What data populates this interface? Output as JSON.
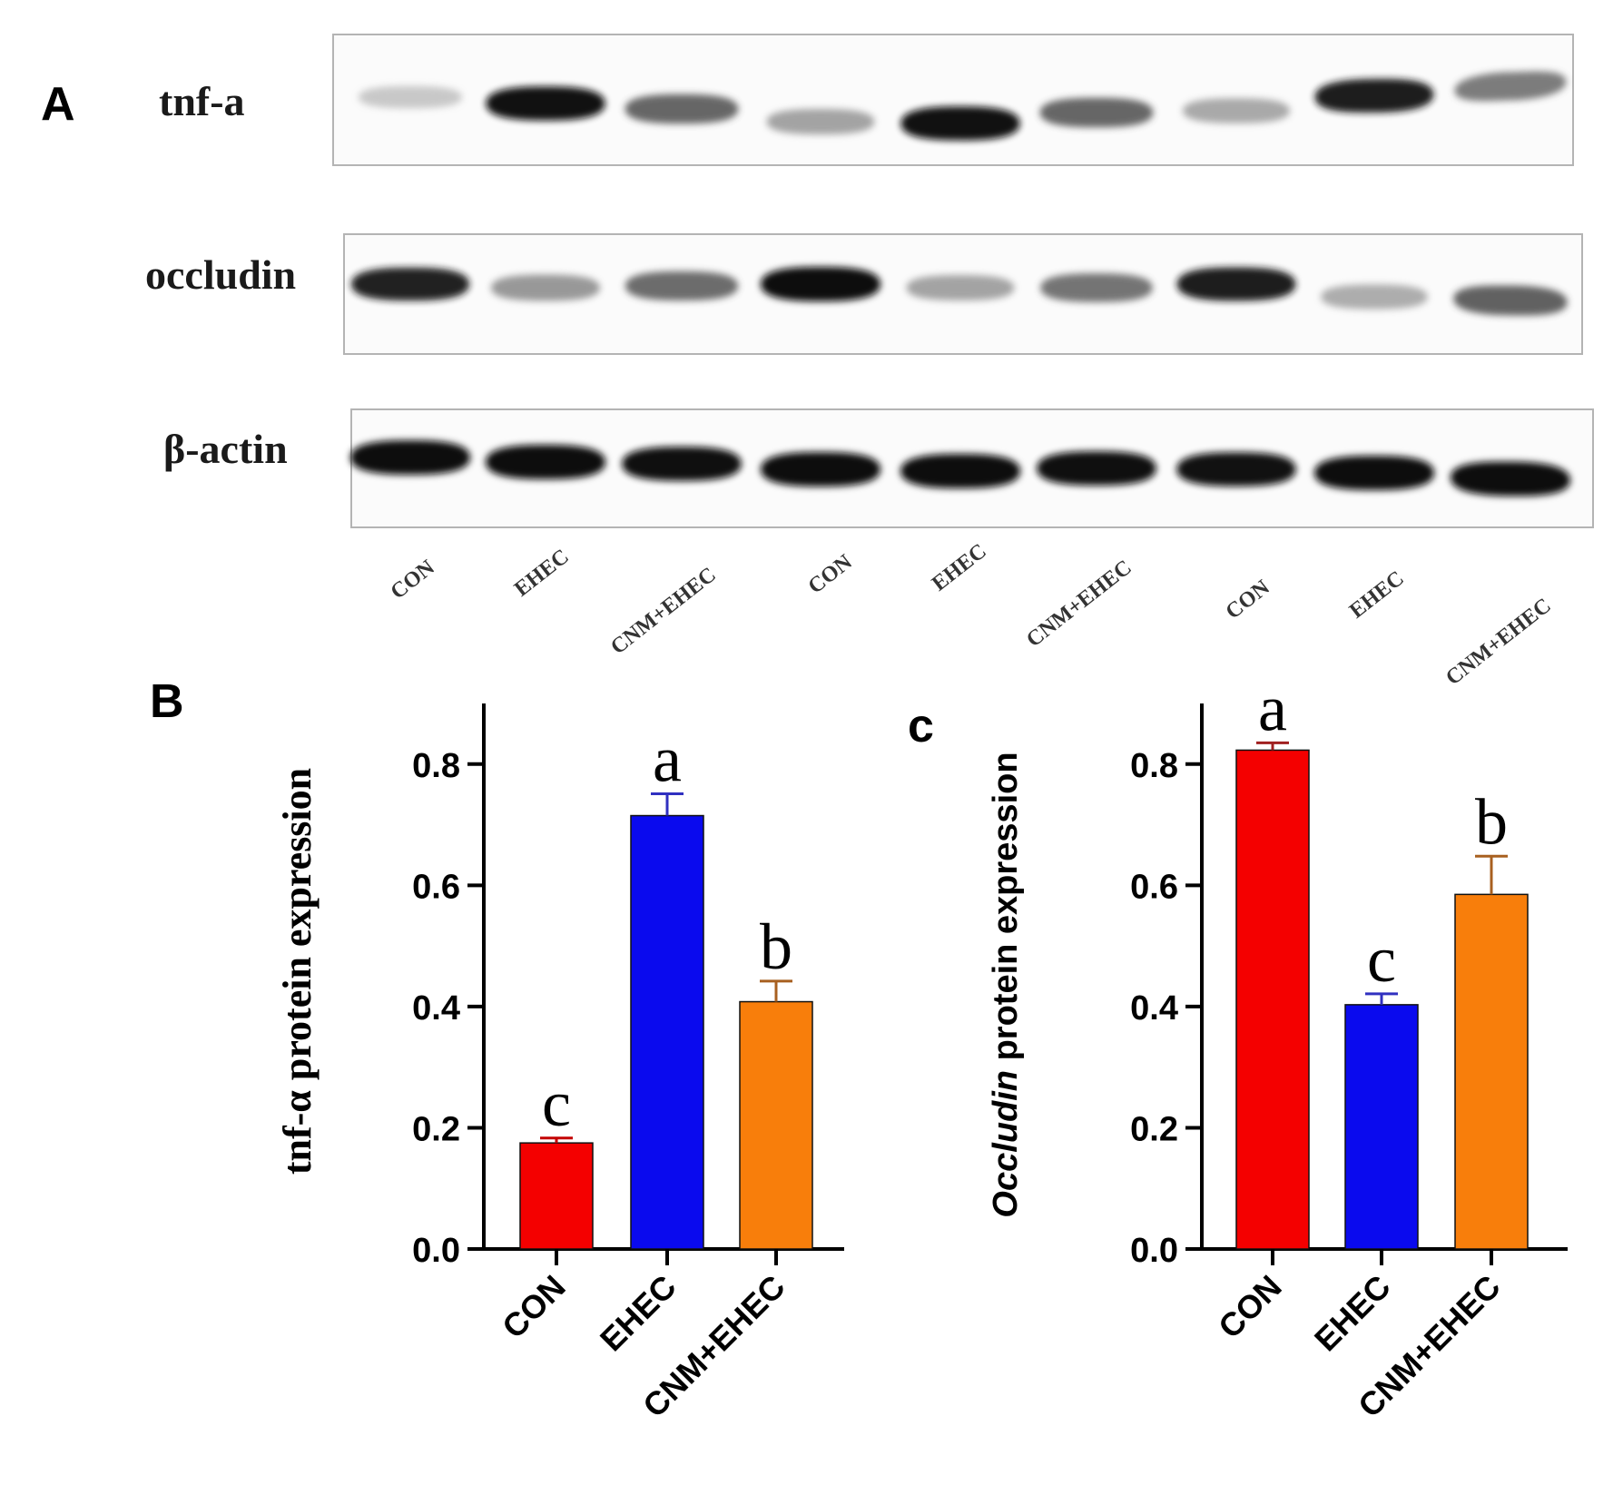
{
  "panel_labels": {
    "a": "A",
    "b": "B",
    "c": "c"
  },
  "blot": {
    "proteins": [
      {
        "label": "tnf-a",
        "intensities": [
          0.25,
          0.97,
          0.7,
          0.45,
          0.97,
          0.7,
          0.42,
          0.95,
          0.62
        ]
      },
      {
        "label": "occludin",
        "intensities": [
          0.92,
          0.5,
          0.68,
          1.0,
          0.45,
          0.65,
          0.95,
          0.4,
          0.72
        ]
      },
      {
        "label": "β-actin",
        "intensities": [
          1.0,
          1.0,
          0.98,
          1.0,
          1.0,
          0.98,
          0.97,
          1.0,
          1.0
        ]
      }
    ],
    "lane_labels": [
      "CON",
      "EHEC",
      "CNM+EHEC",
      "CON",
      "EHEC",
      "CNM+EHEC",
      "CON",
      "EHEC",
      "CNM+EHEC"
    ]
  },
  "chart_data": [
    {
      "type": "bar",
      "ylabel": "tnf-α protein expression",
      "categories": [
        "CON",
        "EHEC",
        "CNM+EHEC"
      ],
      "values": [
        0.175,
        0.715,
        0.408
      ],
      "errors": [
        0.008,
        0.036,
        0.034
      ],
      "annotations": [
        "c",
        "a",
        "b"
      ],
      "colors": [
        "#f40000",
        "#0a0aee",
        "#f87e0b"
      ],
      "ylim": [
        0,
        0.9
      ],
      "yticks": [
        "0.0",
        "0.2",
        "0.4",
        "0.6",
        "0.8"
      ],
      "grid": false
    },
    {
      "type": "bar",
      "ylabel_italic": "Occludin",
      "ylabel_rest": " protein expression",
      "categories": [
        "CON",
        "EHEC",
        "CNM+EHEC"
      ],
      "values": [
        0.823,
        0.403,
        0.585
      ],
      "errors": [
        0.012,
        0.018,
        0.063
      ],
      "annotations": [
        "a",
        "c",
        "b"
      ],
      "colors": [
        "#f40000",
        "#0a0aee",
        "#f87e0b"
      ],
      "ylim": [
        0,
        0.9
      ],
      "yticks": [
        "0.0",
        "0.2",
        "0.4",
        "0.6",
        "0.8"
      ],
      "grid": false
    }
  ]
}
